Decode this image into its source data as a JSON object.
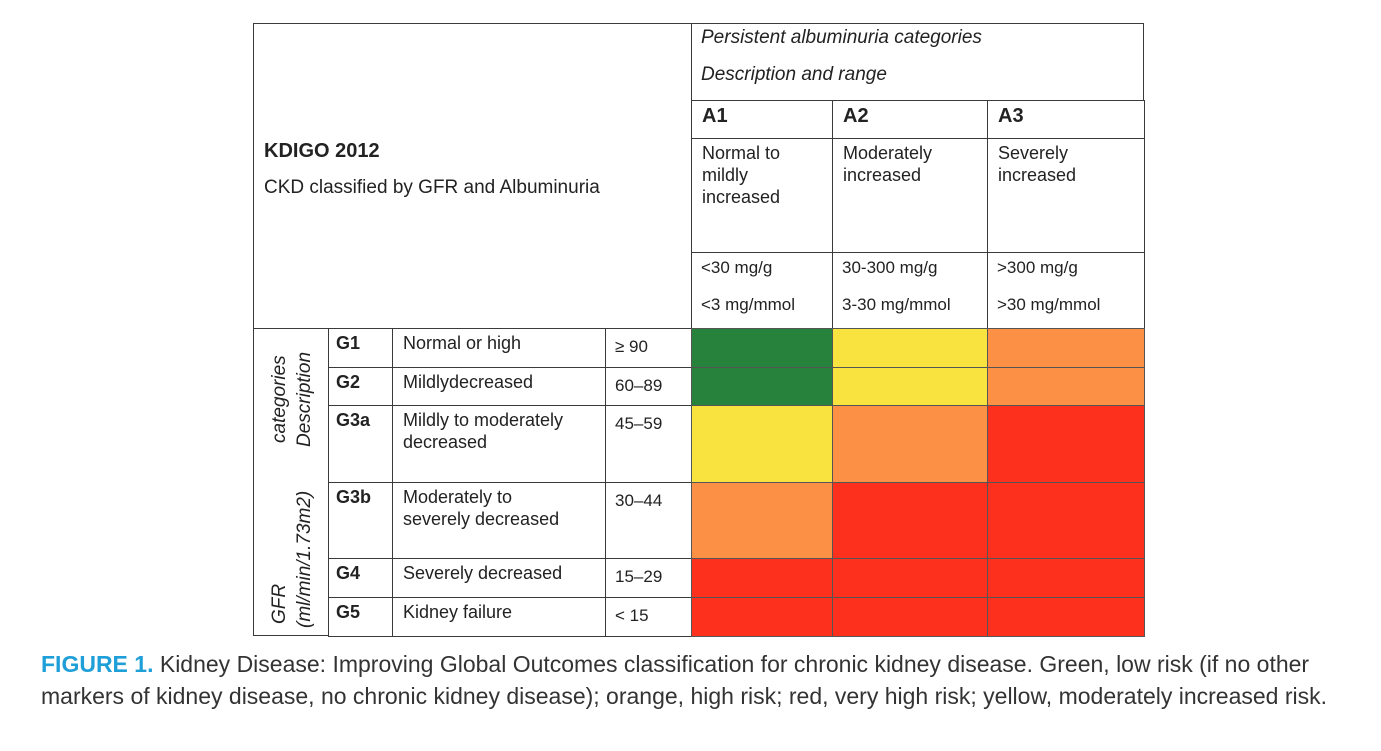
{
  "header": {
    "title": "KDIGO 2012",
    "subtitle": "CKD classified by GFR and Albuminuria",
    "albuminuria_line1": "Persistent albuminuria categories",
    "albuminuria_line2": "Description and range"
  },
  "a_categories": [
    {
      "code": "A1",
      "desc": [
        "Normal to",
        "mildly",
        "increased"
      ],
      "range1": "<30 mg/g",
      "range2": "<3 mg/mmol"
    },
    {
      "code": "A2",
      "desc": [
        "Moderately",
        "increased"
      ],
      "range1": "30-300 mg/g",
      "range2": "3-30 mg/mmol"
    },
    {
      "code": "A3",
      "desc": [
        "Severely",
        "increased"
      ],
      "range1": ">300 mg/g",
      "range2": ">30 mg/mmol"
    }
  ],
  "gfr_label": {
    "col1_top": "categories",
    "col1_bottom": "GFR",
    "col2_top": "Description",
    "col2_bottom": "(ml/min/1.73m2)"
  },
  "g_categories": [
    {
      "code": "G1",
      "desc": [
        "Normal or high"
      ],
      "range": "≥ 90",
      "risk": [
        "low",
        "moderate",
        "high"
      ]
    },
    {
      "code": "G2",
      "desc": [
        "Mildlydecreased"
      ],
      "range": "60–89",
      "risk": [
        "low",
        "moderate",
        "high"
      ]
    },
    {
      "code": "G3a",
      "desc": [
        "Mildly to moderately",
        "decreased"
      ],
      "range": "45–59",
      "risk": [
        "moderate",
        "high",
        "very-high"
      ]
    },
    {
      "code": "G3b",
      "desc": [
        "Moderately to",
        "severely decreased"
      ],
      "range": "30–44",
      "risk": [
        "high",
        "very-high",
        "very-high"
      ]
    },
    {
      "code": "G4",
      "desc": [
        "Severely decreased"
      ],
      "range": "15–29",
      "risk": [
        "very-high",
        "very-high",
        "very-high"
      ]
    },
    {
      "code": "G5",
      "desc": [
        "Kidney failure"
      ],
      "range": "< 15",
      "risk": [
        "very-high",
        "very-high",
        "very-high"
      ]
    }
  ],
  "risk_colors": {
    "low": "#27833b",
    "moderate": "#f9e43f",
    "high": "#fc9146",
    "very-high": "#fc301c"
  },
  "caption": {
    "label": "FIGURE 1.",
    "text": " Kidney Disease: Improving Global Outcomes classification for chronic kidney disease. Green, low risk (if no other markers of kidney disease, no chronic kidney disease); orange, high risk; red, very high risk; yellow, moderately increased risk."
  }
}
